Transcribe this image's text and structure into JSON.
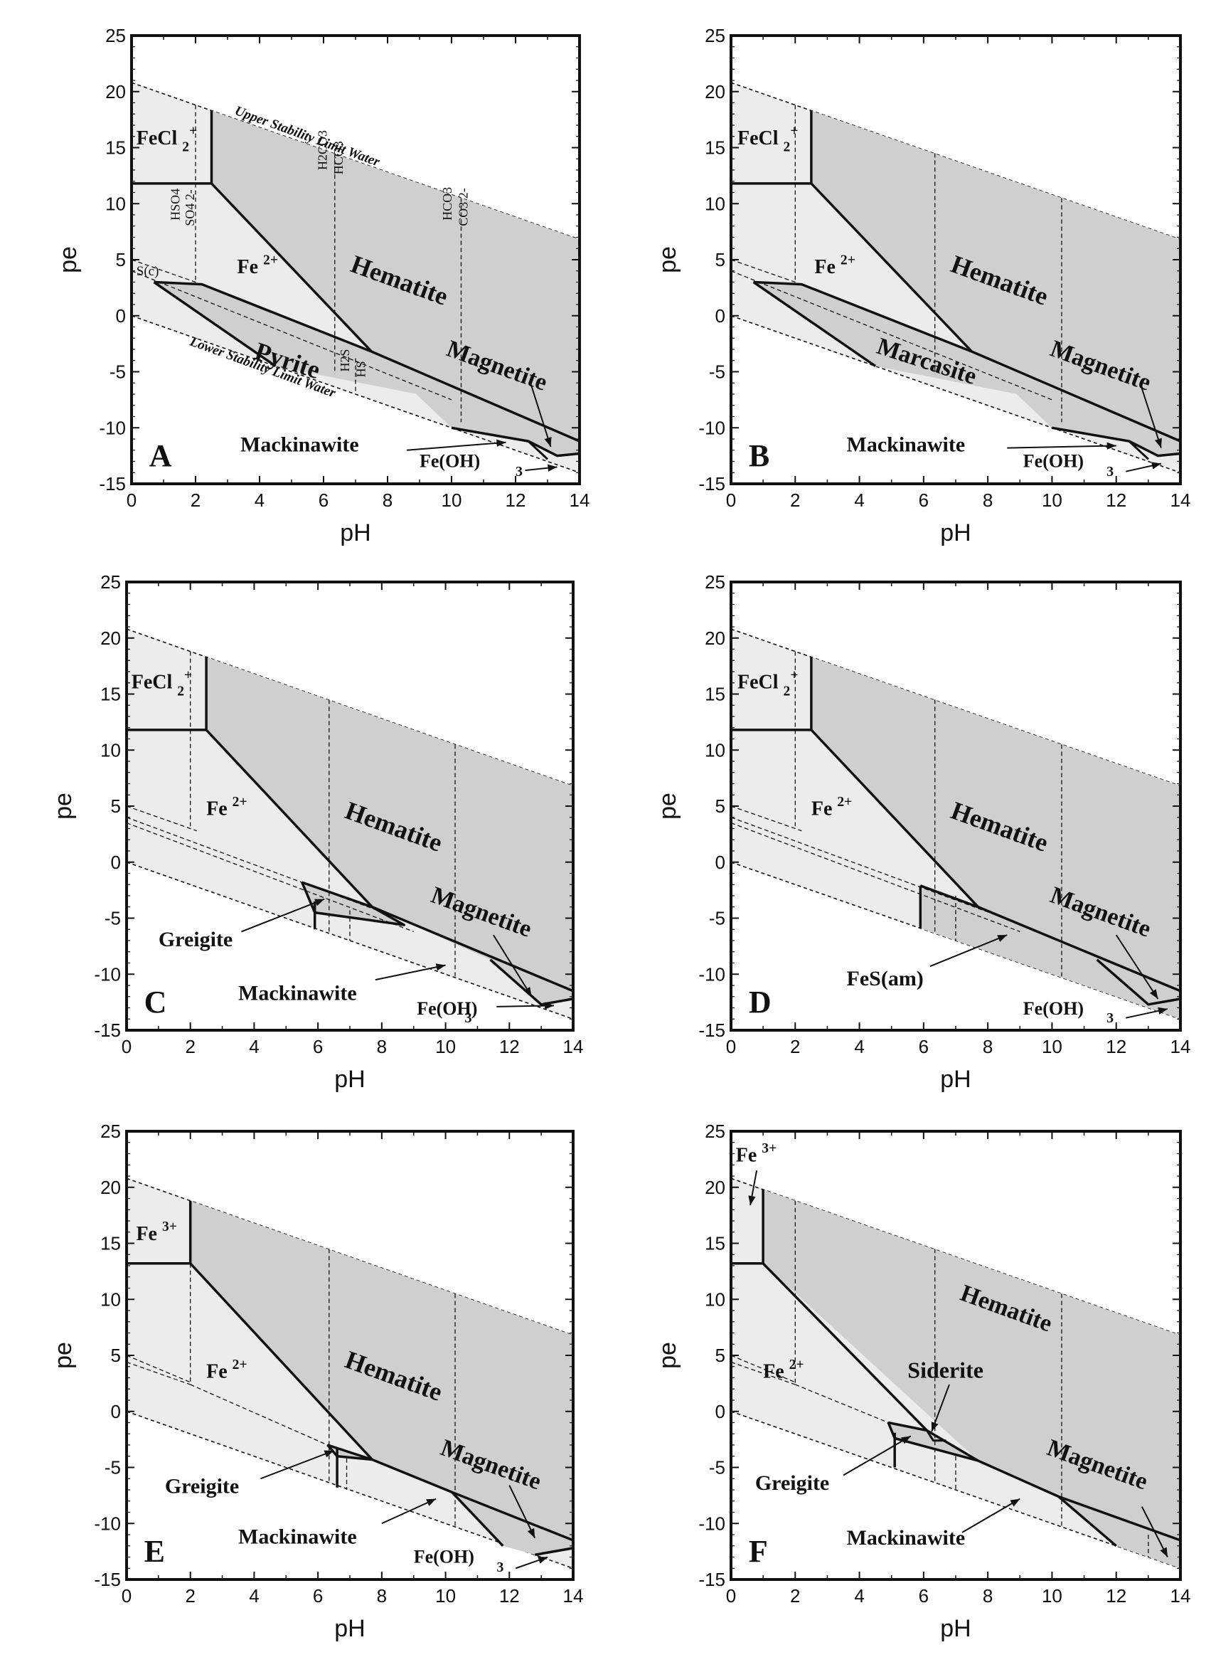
{
  "chart_data": [
    {
      "type": "area",
      "panel": "A",
      "xlabel": "pH",
      "ylabel": "pe",
      "xlim": [
        0,
        14
      ],
      "ylim": [
        -15,
        25
      ],
      "xticks": [
        0,
        2,
        4,
        6,
        8,
        10,
        12,
        14
      ],
      "yticks": [
        -15,
        -10,
        -5,
        0,
        5,
        10,
        15,
        20,
        25
      ],
      "boundaries": {
        "upper_water": [
          [
            0,
            20.8
          ],
          [
            14,
            6.8
          ]
        ],
        "lower_water": [
          [
            0,
            0
          ],
          [
            14,
            -14
          ]
        ]
      },
      "regions": [
        {
          "name": "FeCl2+",
          "points": [
            [
              0,
              20.8
            ],
            [
              2.5,
              18.3
            ],
            [
              2.5,
              11.8
            ],
            [
              0,
              11.8
            ]
          ]
        },
        {
          "name": "Fe2+",
          "points": [
            [
              0,
              11.8
            ],
            [
              2.5,
              11.8
            ],
            [
              7.5,
              -3.2
            ],
            [
              2.2,
              2.8
            ],
            [
              0.7,
              3.0
            ],
            [
              0,
              3.5
            ]
          ]
        },
        {
          "name": "Hematite",
          "points": [
            [
              2.5,
              18.3
            ],
            [
              14,
              6.8
            ],
            [
              14,
              -11.2
            ],
            [
              7.5,
              -3.2
            ],
            [
              2.5,
              11.8
            ]
          ]
        },
        {
          "name": "Pyrite",
          "points": [
            [
              0.7,
              3.0
            ],
            [
              2.2,
              2.8
            ],
            [
              7.5,
              -3.2
            ],
            [
              10,
              -7.5
            ],
            [
              4.5,
              -4.5
            ]
          ]
        },
        {
          "name": "Magnetite",
          "points": [
            [
              7.5,
              -3.2
            ],
            [
              14,
              -11.2
            ],
            [
              14,
              -12.3
            ],
            [
              13.3,
              -12.5
            ],
            [
              12.4,
              -11.2
            ],
            [
              10,
              -10.0
            ]
          ]
        },
        {
          "name": "Mackinawite",
          "points": [
            [
              10,
              -10
            ],
            [
              12.4,
              -11.2
            ],
            [
              13,
              -12.2
            ],
            [
              12.8,
              -13.0
            ]
          ]
        },
        {
          "name": "Fe(OH)3-",
          "points": [
            [
              13.3,
              -12.5
            ],
            [
              14,
              -12.3
            ],
            [
              14,
              -14
            ],
            [
              13.3,
              -13.3
            ]
          ]
        }
      ],
      "dashed_lines": [
        {
          "label": "HSO4- / SO42-",
          "x": 2.0
        },
        {
          "label": "H2CO3 / HCO3-",
          "x": 6.35
        },
        {
          "label": "HCO3- / CO32-",
          "x": 10.3
        },
        {
          "label": "H2S / HS-",
          "x": 7.0
        }
      ],
      "annotations": [
        "Upper Stability Limit Water",
        "Lower Stability Limit Water",
        "S(c)"
      ]
    },
    {
      "type": "area",
      "panel": "B",
      "xlabel": "pH",
      "ylabel": "pe",
      "xlim": [
        0,
        14
      ],
      "ylim": [
        -15,
        25
      ],
      "labels": [
        "FeCl2+",
        "Fe2+",
        "Hematite",
        "Marcasite",
        "Magnetite",
        "Mackinawite",
        "Fe(OH)3-"
      ]
    },
    {
      "type": "area",
      "panel": "C",
      "xlabel": "pH",
      "ylabel": "pe",
      "xlim": [
        0,
        14
      ],
      "ylim": [
        -15,
        25
      ],
      "labels": [
        "FeCl2+",
        "Fe2+",
        "Hematite",
        "Greigite",
        "Magnetite",
        "Mackinawite",
        "Fe(OH)3-"
      ]
    },
    {
      "type": "area",
      "panel": "D",
      "xlabel": "pH",
      "ylabel": "pe",
      "xlim": [
        0,
        14
      ],
      "ylim": [
        -15,
        25
      ],
      "labels": [
        "FeCl2+",
        "Fe2+",
        "Hematite",
        "FeS(am)",
        "Magnetite",
        "Fe(OH)3-"
      ]
    },
    {
      "type": "area",
      "panel": "E",
      "xlabel": "pH",
      "ylabel": "pe",
      "xlim": [
        0,
        14
      ],
      "ylim": [
        -15,
        25
      ],
      "labels": [
        "Fe3+",
        "Fe2+",
        "Hematite",
        "Greigite",
        "Magnetite",
        "Mackinawite",
        "Fe(OH)3-"
      ]
    },
    {
      "type": "area",
      "panel": "F",
      "xlabel": "pH",
      "ylabel": "pe",
      "xlim": [
        0,
        14
      ],
      "ylim": [
        -15,
        25
      ],
      "labels": [
        "Fe3+",
        "Fe2+",
        "Hematite",
        "Siderite",
        "Greigite",
        "Magnetite",
        "Mackinawite"
      ]
    }
  ],
  "text": {
    "xlabel": "pH",
    "ylabel": "pe",
    "xticks": [
      "0",
      "2",
      "4",
      "6",
      "8",
      "10",
      "12",
      "14"
    ],
    "yticks": [
      "-15",
      "-10",
      "-5",
      "0",
      "5",
      "10",
      "15",
      "20",
      "25"
    ],
    "panel_letters": [
      "A",
      "B",
      "C",
      "D",
      "E",
      "F"
    ],
    "fecl": "FeCl",
    "fecl_sub": "2",
    "fecl_sup": "+",
    "fe": "Fe",
    "fe2_sup": "2+",
    "fe3_sup": "3+",
    "hematite": "Hematite",
    "magnetite": "Magnetite",
    "pyrite": "Pyrite",
    "marcasite": "Marcasite",
    "mackinawite": "Mackinawite",
    "greigite": "Greigite",
    "siderite": "Siderite",
    "fes_am": "FeS(am)",
    "feoh": "Fe(OH)",
    "feoh_sub": "3",
    "feoh_sup": "-",
    "upper_limit": "Upper Stability Limit Water",
    "lower_limit": "Lower Stability Limit Water",
    "sc": "S(c)",
    "hso4": "HSO",
    "so4": "SO",
    "h2co3": "H2CO",
    "hco3": "HCO",
    "co3": "CO",
    "h2s": "H2S",
    "hs": "HS"
  },
  "colors": {
    "light_field": "#ececec",
    "dark_field": "#cfcfcf",
    "line": "#111111"
  }
}
